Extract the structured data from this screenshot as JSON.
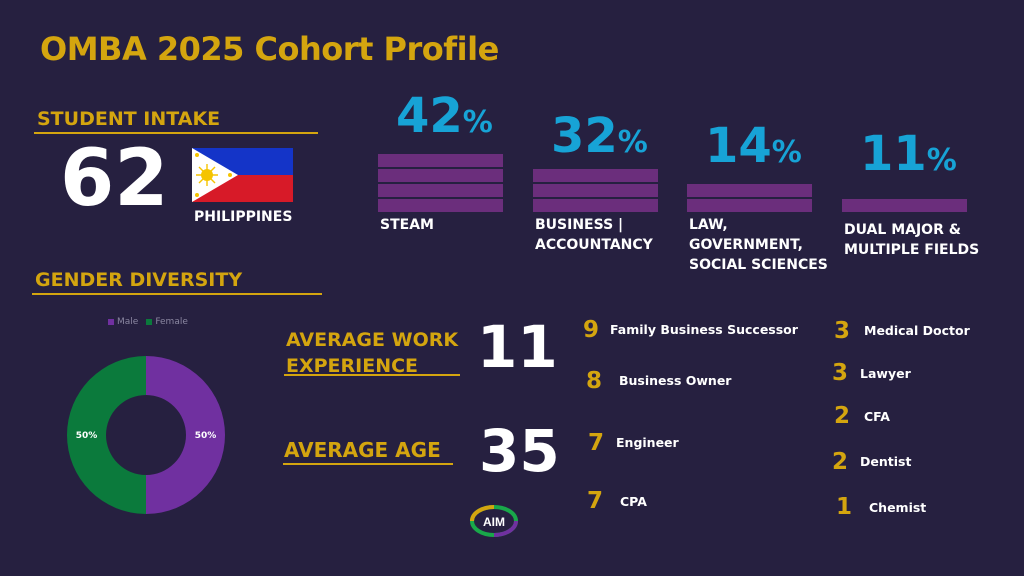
{
  "title": "OMBA 2025 Cohort Profile",
  "intake": {
    "heading": "STUDENT INTAKE",
    "count": "62",
    "country": "PHILIPPINES"
  },
  "fields": [
    {
      "value": "42",
      "sign": "%",
      "label_lines": [
        "STEAM"
      ],
      "bars": 4
    },
    {
      "value": "32",
      "sign": "%",
      "label_lines": [
        "BUSINESS |",
        "ACCOUNTANCY"
      ],
      "bars": 3
    },
    {
      "value": "14",
      "sign": "%",
      "label_lines": [
        "LAW,",
        "GOVERNMENT,",
        "SOCIAL SCIENCES"
      ],
      "bars": 2
    },
    {
      "value": "11",
      "sign": "%",
      "label_lines": [
        "DUAL MAJOR &",
        "MULTIPLE FIELDS"
      ],
      "bars": 1
    }
  ],
  "gender": {
    "heading": "GENDER DIVERSITY",
    "legend": [
      {
        "name": "Male",
        "color": "#7030a0"
      },
      {
        "name": "Female",
        "color": "#0b7a3c"
      }
    ],
    "slices": [
      {
        "name": "Male",
        "value": 50,
        "label": "50%",
        "color": "#7030a0"
      },
      {
        "name": "Female",
        "value": 50,
        "label": "50%",
        "color": "#0b7a3c"
      }
    ]
  },
  "work_experience": {
    "heading_line1": "AVERAGE WORK",
    "heading_line2": "EXPERIENCE",
    "value": "11"
  },
  "age": {
    "heading": "AVERAGE AGE",
    "value": "35"
  },
  "professions_left": [
    {
      "count": "9",
      "label": "Family Business Successor"
    },
    {
      "count": "8",
      "label": "Business Owner"
    },
    {
      "count": "7",
      "label": "Engineer"
    },
    {
      "count": "7",
      "label": "CPA"
    }
  ],
  "professions_right": [
    {
      "count": "3",
      "label": "Medical Doctor"
    },
    {
      "count": "3",
      "label": "Lawyer"
    },
    {
      "count": "2",
      "label": "CFA"
    },
    {
      "count": "2",
      "label": "Dentist"
    },
    {
      "count": "1",
      "label": "Chemist"
    }
  ],
  "logo": {
    "text": "AIM"
  },
  "colors": {
    "background": "#262040",
    "gold": "#d4a50f",
    "blue": "#17a3d6",
    "bar_purple": "#6b2e7c"
  }
}
